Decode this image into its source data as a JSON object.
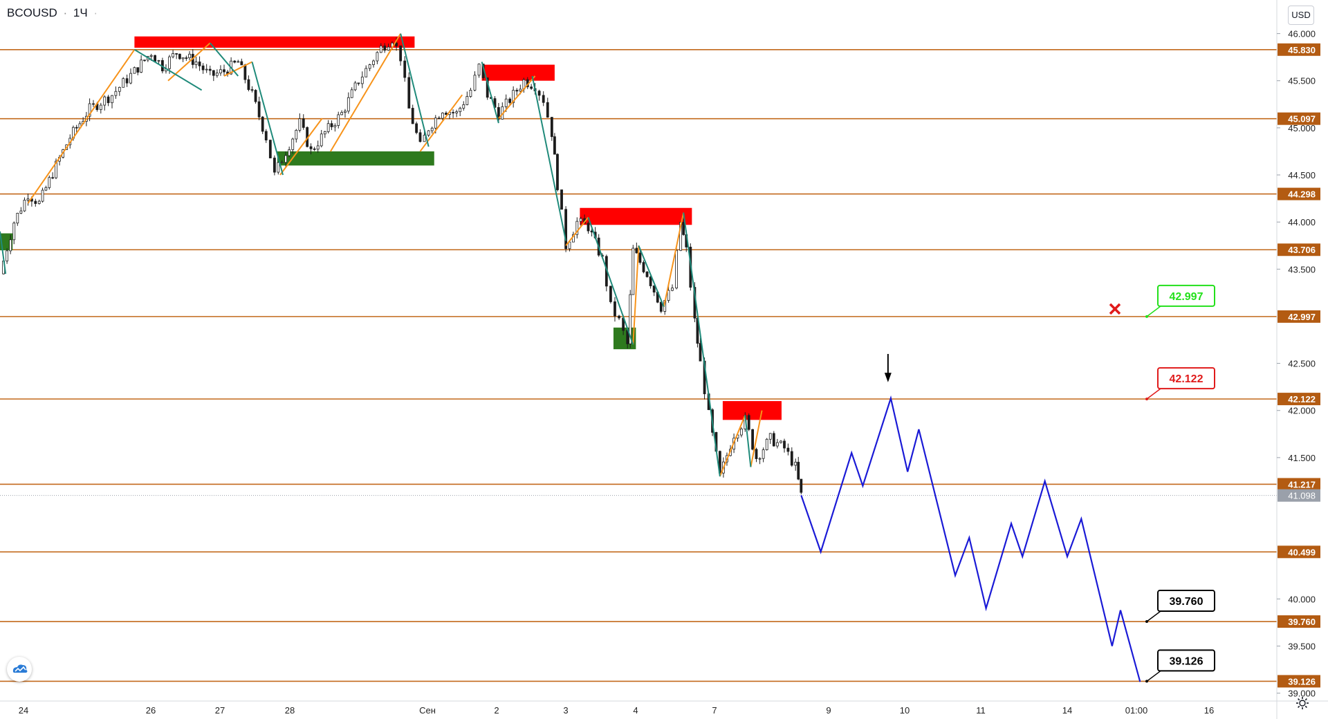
{
  "header": {
    "symbol": "BCOUSD",
    "dot": "·",
    "interval": "1Ч",
    "currency": "USD"
  },
  "colors": {
    "level_line": "#c2681a",
    "price_tag": "#b35b12",
    "projection": "#1a1ad6",
    "resistance_zone": "#ff0000",
    "support_zone": "#2e7a1e",
    "zigzag_up": "#f7931a",
    "zigzag_down": "#1f8a7a",
    "target_green": "#22e01a",
    "target_red": "#e01a1a",
    "target_black": "#000000"
  },
  "chart_data": {
    "type": "line",
    "title": "BCOUSD · 1Ч",
    "currency": "USD",
    "ylim": [
      38.95,
      46.15
    ],
    "y_ticks": [
      "46.000",
      "45.500",
      "45.000",
      "44.500",
      "44.000",
      "43.500",
      "42.500",
      "42.000",
      "41.500",
      "40.000",
      "39.500",
      "39.000"
    ],
    "x_ticks": [
      "24",
      "26",
      "27",
      "28",
      "Сен",
      "2",
      "3",
      "4",
      "7",
      "9",
      "10",
      "11",
      "14",
      "01:00",
      "16"
    ],
    "levels": [
      "45.830",
      "45.097",
      "44.298",
      "43.706",
      "42.997",
      "42.122",
      "41.217",
      "40.499",
      "39.760",
      "39.126"
    ],
    "current_price": "41.098",
    "target_labels": [
      {
        "text": "42.997",
        "role": "stop",
        "color": "green"
      },
      {
        "text": "42.122",
        "role": "entry",
        "color": "red"
      },
      {
        "text": "39.760",
        "role": "target-1",
        "color": "black"
      },
      {
        "text": "39.126",
        "role": "target-2",
        "color": "black"
      }
    ],
    "history_path": [
      [
        0.0,
        43.45
      ],
      [
        0.5,
        44.0
      ],
      [
        1.0,
        44.3
      ],
      [
        1.4,
        44.2
      ],
      [
        2.0,
        44.6
      ],
      [
        2.5,
        44.9
      ],
      [
        3.2,
        45.2
      ],
      [
        4.0,
        45.35
      ],
      [
        4.8,
        45.6
      ],
      [
        5.4,
        45.8
      ],
      [
        5.8,
        45.65
      ],
      [
        6.3,
        45.8
      ],
      [
        7.0,
        45.7
      ],
      [
        7.5,
        45.55
      ],
      [
        8.0,
        45.6
      ],
      [
        8.5,
        45.7
      ],
      [
        9.0,
        45.35
      ],
      [
        9.5,
        44.9
      ],
      [
        9.8,
        44.5
      ],
      [
        10.2,
        44.75
      ],
      [
        10.7,
        45.05
      ],
      [
        11.1,
        44.75
      ],
      [
        11.6,
        44.95
      ],
      [
        12.2,
        45.15
      ],
      [
        12.8,
        45.5
      ],
      [
        13.6,
        45.85
      ],
      [
        14.0,
        45.95
      ],
      [
        14.3,
        45.75
      ],
      [
        14.6,
        45.2
      ],
      [
        15.0,
        44.8
      ],
      [
        15.3,
        45.0
      ],
      [
        15.8,
        45.2
      ],
      [
        16.3,
        45.15
      ],
      [
        16.8,
        45.4
      ],
      [
        17.1,
        45.65
      ],
      [
        17.4,
        45.35
      ],
      [
        17.8,
        45.15
      ],
      [
        18.2,
        45.3
      ],
      [
        18.7,
        45.5
      ],
      [
        19.1,
        45.45
      ],
      [
        19.4,
        45.3
      ],
      [
        19.7,
        44.95
      ],
      [
        19.9,
        44.4
      ],
      [
        20.2,
        43.75
      ],
      [
        20.6,
        44.0
      ],
      [
        21.0,
        43.95
      ],
      [
        21.5,
        43.6
      ],
      [
        21.8,
        43.1
      ],
      [
        22.1,
        42.95
      ],
      [
        22.4,
        42.7
      ],
      [
        22.6,
        43.7
      ],
      [
        23.1,
        43.45
      ],
      [
        23.6,
        43.1
      ],
      [
        24.0,
        43.3
      ],
      [
        24.3,
        44.0
      ],
      [
        24.5,
        43.7
      ],
      [
        24.8,
        42.95
      ],
      [
        25.0,
        42.5
      ],
      [
        25.3,
        41.95
      ],
      [
        25.7,
        41.3
      ],
      [
        26.2,
        41.75
      ],
      [
        26.6,
        41.9
      ],
      [
        27.0,
        41.5
      ],
      [
        27.5,
        41.7
      ],
      [
        28.0,
        41.6
      ],
      [
        28.4,
        41.4
      ],
      [
        28.6,
        41.1
      ]
    ],
    "projection_path": [
      [
        28.6,
        41.1
      ],
      [
        29.3,
        40.5
      ],
      [
        30.4,
        41.55
      ],
      [
        30.8,
        41.2
      ],
      [
        31.8,
        42.13
      ],
      [
        32.4,
        41.35
      ],
      [
        32.8,
        41.8
      ],
      [
        34.1,
        40.25
      ],
      [
        34.6,
        40.65
      ],
      [
        35.2,
        39.9
      ],
      [
        36.1,
        40.8
      ],
      [
        36.5,
        40.45
      ],
      [
        37.3,
        41.25
      ],
      [
        38.1,
        40.45
      ],
      [
        38.6,
        40.85
      ],
      [
        39.7,
        39.5
      ],
      [
        40.0,
        39.88
      ],
      [
        40.7,
        39.12
      ]
    ],
    "zigzag_up": [
      [
        [
          1.0,
          44.2
        ],
        [
          4.8,
          45.83
        ]
      ],
      [
        [
          6.0,
          45.5
        ],
        [
          7.5,
          45.9
        ]
      ],
      [
        [
          8.0,
          45.55
        ],
        [
          9.0,
          45.7
        ]
      ],
      [
        [
          10.0,
          44.5
        ],
        [
          11.5,
          45.1
        ]
      ],
      [
        [
          11.8,
          44.75
        ],
        [
          14.3,
          46.0
        ]
      ],
      [
        [
          15.0,
          44.75
        ],
        [
          16.5,
          45.35
        ]
      ],
      [
        [
          17.8,
          45.1
        ],
        [
          19.1,
          45.55
        ]
      ],
      [
        [
          20.2,
          43.75
        ],
        [
          21.0,
          44.05
        ]
      ],
      [
        [
          22.6,
          42.7
        ],
        [
          22.8,
          43.75
        ]
      ],
      [
        [
          23.7,
          43.1
        ],
        [
          24.4,
          44.1
        ]
      ],
      [
        [
          25.7,
          41.3
        ],
        [
          26.6,
          41.95
        ]
      ],
      [
        [
          26.8,
          41.4
        ],
        [
          27.2,
          42.0
        ]
      ]
    ],
    "zigzag_down": [
      [
        [
          0.0,
          43.9
        ],
        [
          0.2,
          43.45
        ]
      ],
      [
        [
          4.8,
          45.83
        ],
        [
          7.2,
          45.4
        ]
      ],
      [
        [
          7.5,
          45.9
        ],
        [
          8.5,
          45.55
        ]
      ],
      [
        [
          9.0,
          45.7
        ],
        [
          10.1,
          44.5
        ]
      ],
      [
        [
          14.3,
          46.0
        ],
        [
          15.3,
          44.8
        ]
      ],
      [
        [
          17.2,
          45.7
        ],
        [
          17.8,
          45.05
        ]
      ],
      [
        [
          19.0,
          45.55
        ],
        [
          20.2,
          43.8
        ]
      ],
      [
        [
          21.0,
          44.05
        ],
        [
          22.6,
          42.7
        ]
      ],
      [
        [
          22.8,
          43.75
        ],
        [
          23.7,
          43.1
        ]
      ],
      [
        [
          24.4,
          44.1
        ],
        [
          25.7,
          41.3
        ]
      ],
      [
        [
          26.6,
          41.95
        ],
        [
          26.8,
          41.4
        ]
      ]
    ],
    "resistance_zones": [
      {
        "x0": 4.8,
        "x1": 14.8,
        "y0": 45.85,
        "y1": 45.97
      },
      {
        "x0": 17.2,
        "x1": 19.8,
        "y0": 45.5,
        "y1": 45.67
      },
      {
        "x0": 20.7,
        "x1": 24.7,
        "y0": 43.97,
        "y1": 44.15
      },
      {
        "x0": 25.8,
        "x1": 27.9,
        "y0": 41.9,
        "y1": 42.1
      }
    ],
    "support_zones": [
      {
        "x0": 0.0,
        "x1": 0.45,
        "y0": 43.7,
        "y1": 43.88
      },
      {
        "x0": 9.9,
        "x1": 15.5,
        "y0": 44.6,
        "y1": 44.75
      },
      {
        "x0": 21.9,
        "x1": 22.7,
        "y0": 42.65,
        "y1": 42.88
      }
    ],
    "stop_marker_x": 40.0,
    "arrow_marker_x": 31.7
  }
}
